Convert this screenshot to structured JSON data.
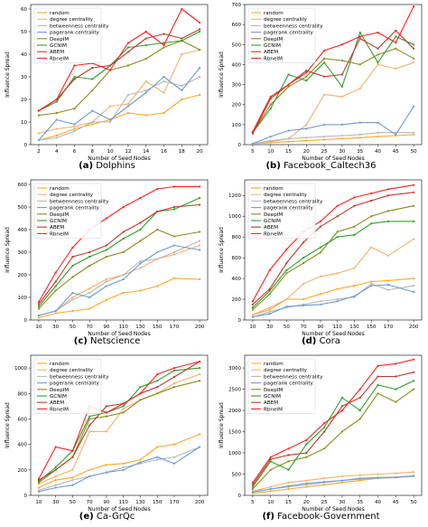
{
  "figure": {
    "colors": {
      "random": "#ffa726",
      "degree centrality": "#f5b06c",
      "betweenness centrality": "#b8b8b8",
      "pagerank centrality": "#6c9bd4",
      "DeepIM": "#8b8b1a",
      "GCNIM": "#2ca02c",
      "ABEM": "#c0392b",
      "RbneIM": "#ff1f1f"
    },
    "marker": "dot"
  },
  "chart_data": [
    {
      "type": "line",
      "panel_label": "(a)",
      "caption": "Dolphins",
      "xlabel": "Number of Seed Nodes",
      "ylabel": "Influence Spread",
      "x": [
        2,
        4,
        6,
        8,
        10,
        12,
        14,
        16,
        18,
        20
      ],
      "xticks": [
        "2",
        "4",
        "6",
        "8",
        "10",
        "12",
        "14",
        "16",
        "18",
        "20"
      ],
      "ylim": [
        0,
        62
      ],
      "yticks": [
        0,
        10,
        20,
        30,
        40,
        50,
        60
      ],
      "legend": "top-left",
      "series": [
        {
          "name": "random",
          "values": [
            2,
            4,
            7,
            9,
            11,
            14,
            13,
            14,
            20,
            22
          ]
        },
        {
          "name": "degree centrality",
          "values": [
            5,
            7,
            8,
            10,
            17,
            18,
            28,
            23,
            40,
            42
          ]
        },
        {
          "name": "betweenness centrality",
          "values": [
            2,
            3,
            6,
            10,
            10,
            22,
            24,
            28,
            26,
            30
          ]
        },
        {
          "name": "pagerank centrality",
          "values": [
            2,
            11,
            9,
            15,
            11,
            17,
            23,
            30,
            24,
            34
          ]
        },
        {
          "name": "DeepIM",
          "values": [
            13,
            14,
            16,
            24,
            33,
            35,
            38,
            43,
            46,
            42
          ]
        },
        {
          "name": "GCNIM",
          "values": [
            15,
            19,
            30,
            29,
            35,
            43,
            44,
            45,
            46,
            50
          ]
        },
        {
          "name": "ABEM",
          "values": [
            15,
            20,
            29,
            34,
            35,
            41,
            47,
            49,
            47,
            51
          ]
        },
        {
          "name": "RbneIM",
          "values": [
            15,
            20,
            35,
            36,
            33,
            45,
            50,
            44,
            60,
            54
          ]
        }
      ]
    },
    {
      "type": "line",
      "panel_label": "(b)",
      "caption": "Facebook_Caltech36",
      "xlabel": "Number of Seed Nodes",
      "ylabel": "Influence Spread",
      "x": [
        5,
        10,
        15,
        20,
        25,
        30,
        35,
        40,
        45,
        50
      ],
      "xticks": [
        "5",
        "10",
        "15",
        "20",
        "25",
        "30",
        "35",
        "40",
        "45",
        "50"
      ],
      "ylim": [
        0,
        700
      ],
      "yticks": [
        0,
        100,
        200,
        300,
        400,
        500,
        600,
        700
      ],
      "legend": "top-left",
      "series": [
        {
          "name": "random",
          "values": [
            5,
            10,
            15,
            20,
            25,
            30,
            35,
            40,
            45,
            50
          ]
        },
        {
          "name": "degree centrality",
          "values": [
            5,
            15,
            30,
            100,
            250,
            240,
            280,
            400,
            380,
            410
          ]
        },
        {
          "name": "betweenness centrality",
          "values": [
            5,
            20,
            30,
            35,
            40,
            45,
            50,
            60,
            60,
            60
          ]
        },
        {
          "name": "pagerank centrality",
          "values": [
            5,
            40,
            70,
            80,
            100,
            100,
            110,
            110,
            50,
            190
          ]
        },
        {
          "name": "DeepIM",
          "values": [
            60,
            200,
            290,
            340,
            430,
            420,
            400,
            450,
            480,
            430
          ]
        },
        {
          "name": "GCNIM",
          "values": [
            60,
            180,
            350,
            320,
            410,
            290,
            560,
            410,
            540,
            500
          ]
        },
        {
          "name": "ABEM",
          "values": [
            55,
            230,
            300,
            370,
            340,
            350,
            530,
            480,
            570,
            480
          ]
        },
        {
          "name": "RbneIM",
          "values": [
            65,
            240,
            300,
            360,
            470,
            500,
            540,
            560,
            510,
            690
          ]
        }
      ]
    },
    {
      "type": "line",
      "panel_label": "(c)",
      "caption": "Netscience",
      "xlabel": "Number of Seed Nodes",
      "ylabel": "Influence Spread",
      "x": [
        10,
        30,
        50,
        70,
        90,
        110,
        130,
        150,
        170,
        200
      ],
      "xticks": [
        "10",
        "30",
        "50",
        "70",
        "90",
        "110",
        "130",
        "150",
        "170",
        "200"
      ],
      "ylim": [
        0,
        620
      ],
      "yticks": [
        0,
        100,
        200,
        300,
        400,
        500,
        600
      ],
      "legend": "top-left",
      "series": [
        {
          "name": "random",
          "values": [
            10,
            30,
            40,
            50,
            90,
            120,
            130,
            150,
            185,
            180
          ]
        },
        {
          "name": "degree centrality",
          "values": [
            20,
            40,
            100,
            140,
            180,
            200,
            230,
            270,
            290,
            330
          ]
        },
        {
          "name": "betweenness centrality",
          "values": [
            20,
            40,
            90,
            120,
            170,
            200,
            260,
            270,
            300,
            350
          ]
        },
        {
          "name": "pagerank centrality",
          "values": [
            20,
            40,
            120,
            100,
            150,
            180,
            250,
            300,
            330,
            310
          ]
        },
        {
          "name": "DeepIM",
          "values": [
            50,
            130,
            190,
            240,
            280,
            300,
            350,
            400,
            370,
            390
          ]
        },
        {
          "name": "GCNIM",
          "values": [
            60,
            150,
            240,
            280,
            310,
            360,
            400,
            480,
            490,
            540
          ]
        },
        {
          "name": "ABEM",
          "values": [
            70,
            170,
            280,
            300,
            330,
            390,
            430,
            480,
            500,
            510
          ]
        },
        {
          "name": "RbneIM",
          "values": [
            80,
            210,
            320,
            400,
            450,
            500,
            540,
            580,
            590,
            590
          ]
        }
      ]
    },
    {
      "type": "line",
      "panel_label": "(d)",
      "caption": "Cora",
      "xlabel": "Number of Seed Nodes",
      "ylabel": "Influence Spread",
      "x": [
        10,
        30,
        50,
        70,
        90,
        110,
        130,
        150,
        170,
        200
      ],
      "xticks": [
        "10",
        "30",
        "50",
        "70",
        "90",
        "110",
        "130",
        "150",
        "170",
        "200"
      ],
      "ylim": [
        0,
        1350
      ],
      "yticks": [
        0,
        200,
        400,
        600,
        800,
        1000,
        1200
      ],
      "legend": "top-left",
      "series": [
        {
          "name": "random",
          "values": [
            50,
            100,
            200,
            200,
            250,
            300,
            330,
            370,
            380,
            400
          ]
        },
        {
          "name": "degree centrality",
          "values": [
            50,
            120,
            200,
            350,
            420,
            450,
            500,
            700,
            620,
            780
          ]
        },
        {
          "name": "betweenness centrality",
          "values": [
            30,
            80,
            120,
            150,
            180,
            200,
            220,
            350,
            290,
            330
          ]
        },
        {
          "name": "pagerank centrality",
          "values": [
            30,
            60,
            130,
            140,
            150,
            180,
            230,
            330,
            340,
            270
          ]
        },
        {
          "name": "DeepIM",
          "values": [
            100,
            250,
            450,
            550,
            650,
            850,
            900,
            1000,
            1050,
            1100
          ]
        },
        {
          "name": "GCNIM",
          "values": [
            120,
            280,
            480,
            600,
            700,
            800,
            820,
            930,
            950,
            950
          ]
        },
        {
          "name": "ABEM",
          "values": [
            150,
            300,
            550,
            750,
            900,
            1000,
            1100,
            1150,
            1200,
            1230
          ]
        },
        {
          "name": "RbneIM",
          "values": [
            180,
            480,
            680,
            850,
            950,
            1100,
            1180,
            1220,
            1260,
            1300
          ]
        }
      ]
    },
    {
      "type": "line",
      "panel_label": "(e)",
      "caption": "Ca-GrQc",
      "xlabel": "Number of Seed Nodes",
      "ylabel": "Influence Spread",
      "x": [
        10,
        30,
        50,
        70,
        90,
        110,
        130,
        150,
        170,
        200
      ],
      "xticks": [
        "10",
        "30",
        "50",
        "70",
        "90",
        "110",
        "130",
        "150",
        "170",
        "200"
      ],
      "ylim": [
        0,
        1100
      ],
      "yticks": [
        0,
        200,
        400,
        600,
        800,
        1000
      ],
      "legend": "top-left",
      "series": [
        {
          "name": "random",
          "values": [
            60,
            120,
            140,
            200,
            240,
            250,
            280,
            380,
            400,
            480
          ]
        },
        {
          "name": "degree centrality",
          "values": [
            90,
            150,
            200,
            500,
            500,
            680,
            750,
            800,
            880,
            950
          ]
        },
        {
          "name": "betweenness centrality",
          "values": [
            40,
            80,
            120,
            150,
            180,
            220,
            250,
            280,
            300,
            380
          ]
        },
        {
          "name": "pagerank centrality",
          "values": [
            30,
            60,
            80,
            150,
            180,
            200,
            260,
            300,
            250,
            380
          ]
        },
        {
          "name": "DeepIM",
          "values": [
            100,
            200,
            300,
            600,
            620,
            650,
            750,
            800,
            850,
            900
          ]
        },
        {
          "name": "GCNIM",
          "values": [
            110,
            220,
            350,
            620,
            650,
            700,
            850,
            900,
            980,
            1000
          ]
        },
        {
          "name": "ABEM",
          "values": [
            120,
            200,
            300,
            550,
            700,
            720,
            800,
            850,
            930,
            1050
          ]
        },
        {
          "name": "RbneIM",
          "values": [
            130,
            380,
            350,
            700,
            650,
            720,
            800,
            950,
            1000,
            1050
          ]
        }
      ]
    },
    {
      "type": "line",
      "panel_label": "(f)",
      "caption": "Facebook-Government",
      "xlabel": "Number of Seed Nodes",
      "ylabel": "Influence Spread",
      "x": [
        5,
        10,
        15,
        20,
        25,
        30,
        35,
        40,
        45,
        50
      ],
      "xticks": [
        "5",
        "10",
        "15",
        "20",
        "25",
        "30",
        "35",
        "40",
        "45",
        "50"
      ],
      "ylim": [
        0,
        3300
      ],
      "yticks": [
        0,
        500,
        1000,
        1500,
        2000,
        2500,
        3000
      ],
      "legend": "top-left",
      "series": [
        {
          "name": "random",
          "values": [
            50,
            100,
            150,
            200,
            250,
            300,
            350,
            400,
            420,
            450
          ]
        },
        {
          "name": "degree centrality",
          "values": [
            100,
            200,
            300,
            350,
            400,
            450,
            480,
            500,
            520,
            550
          ]
        },
        {
          "name": "betweenness centrality",
          "values": [
            80,
            150,
            200,
            250,
            300,
            350,
            380,
            400,
            420,
            450
          ]
        },
        {
          "name": "pagerank centrality",
          "values": [
            80,
            150,
            220,
            280,
            320,
            350,
            400,
            420,
            430,
            460
          ]
        },
        {
          "name": "DeepIM",
          "values": [
            150,
            600,
            800,
            900,
            1100,
            1500,
            1800,
            2400,
            2200,
            2500
          ]
        },
        {
          "name": "GCNIM",
          "values": [
            200,
            800,
            600,
            1200,
            1600,
            2300,
            2000,
            2600,
            2500,
            2700
          ]
        },
        {
          "name": "ABEM",
          "values": [
            250,
            850,
            950,
            1000,
            1500,
            2100,
            2300,
            2800,
            2800,
            2900
          ]
        },
        {
          "name": "RbneIM",
          "values": [
            300,
            900,
            1100,
            1300,
            1700,
            2000,
            2500,
            3050,
            3100,
            3200
          ]
        }
      ]
    }
  ]
}
